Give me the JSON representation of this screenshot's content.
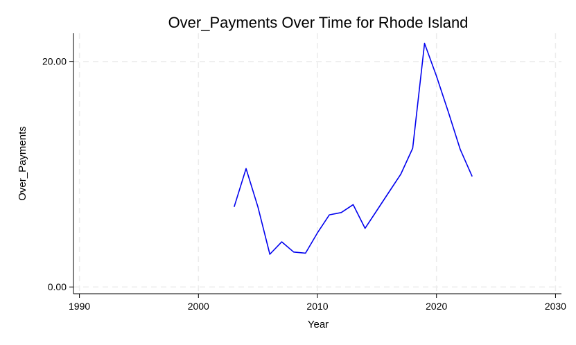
{
  "chart_data": {
    "type": "line",
    "title": "Over_Payments Over Time for Rhode Island",
    "xlabel": "Year",
    "ylabel": "Over_Payments",
    "xlim": [
      1989.5,
      2030.5
    ],
    "ylim": [
      -0.6,
      22.5
    ],
    "x_ticks": [
      1990,
      2000,
      2010,
      2020,
      2030
    ],
    "x_tick_labels": [
      "1990",
      "2000",
      "2010",
      "2020",
      "2030"
    ],
    "y_ticks": [
      0,
      20
    ],
    "y_tick_labels": [
      "0.00",
      "20.00"
    ],
    "grid": true,
    "legend": "none",
    "line_color": "#0000ee",
    "series": [
      {
        "x": [
          2003,
          2004,
          2005,
          2006,
          2007,
          2008,
          2009,
          2010,
          2011,
          2012,
          2013,
          2014,
          2015,
          2016,
          2017,
          2018,
          2019,
          2020,
          2021,
          2022,
          2023
        ],
        "values": [
          7.1,
          10.5,
          7.1,
          2.9,
          4.0,
          3.1,
          3.0,
          4.8,
          6.4,
          6.6,
          7.3,
          5.2,
          6.8,
          8.4,
          10.0,
          12.3,
          21.6,
          18.7,
          15.5,
          12.2,
          9.8
        ]
      }
    ]
  }
}
